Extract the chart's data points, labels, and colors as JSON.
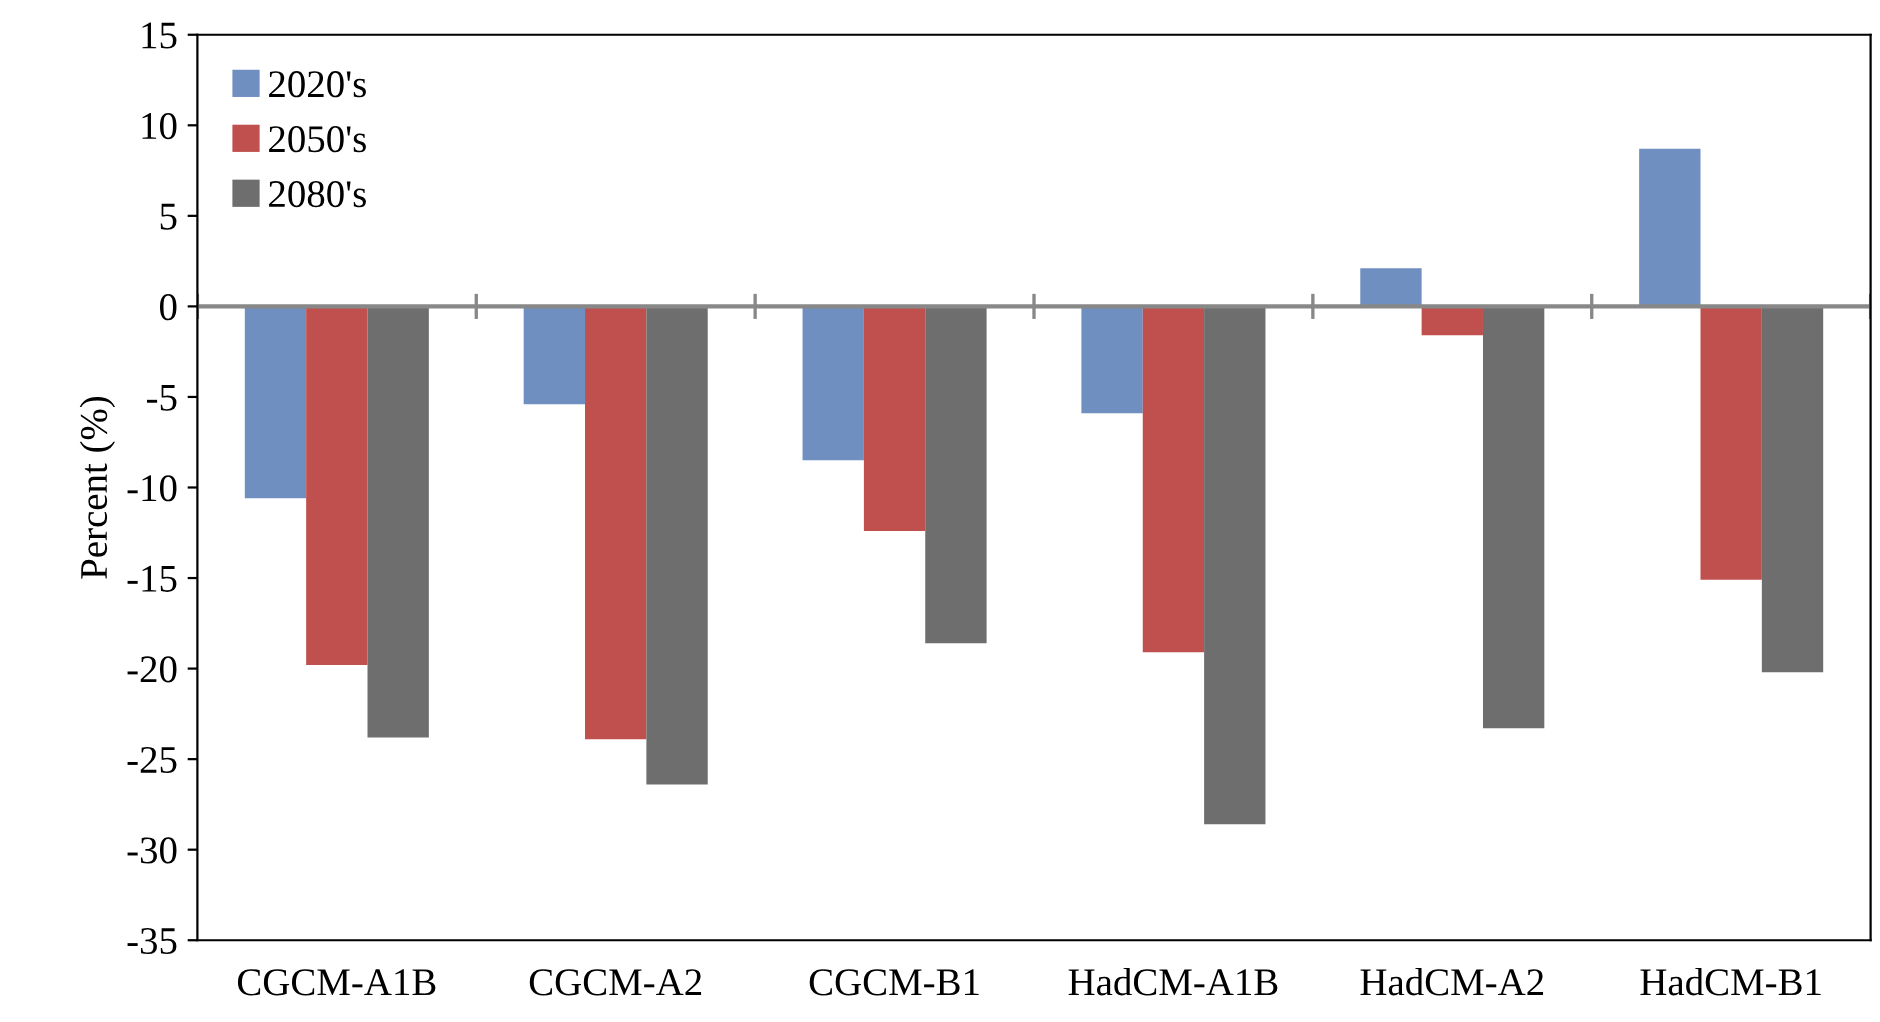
{
  "chart_data": {
    "type": "bar",
    "ylabel": "Percent (%)",
    "categories": [
      "CGCM-A1B",
      "CGCM-A2",
      "CGCM-B1",
      "HadCM-A1B",
      "HadCM-A2",
      "HadCM-B1"
    ],
    "series": [
      {
        "name": "2020's",
        "color": "#6f8fc0",
        "values": [
          -10.6,
          -5.4,
          -8.5,
          -5.9,
          2.1,
          8.7
        ]
      },
      {
        "name": "2050's",
        "color": "#c0504d",
        "values": [
          -19.8,
          -23.9,
          -12.4,
          -19.1,
          -1.6,
          -15.1
        ]
      },
      {
        "name": "2080's",
        "color": "#6e6e6e",
        "values": [
          -23.8,
          -26.4,
          -18.6,
          -28.6,
          -23.3,
          -20.2
        ]
      }
    ],
    "ylim": [
      -35,
      15
    ],
    "yticks": [
      -35,
      -30,
      -25,
      -20,
      -15,
      -10,
      -5,
      0,
      5,
      10,
      15
    ],
    "legend": "top left"
  }
}
